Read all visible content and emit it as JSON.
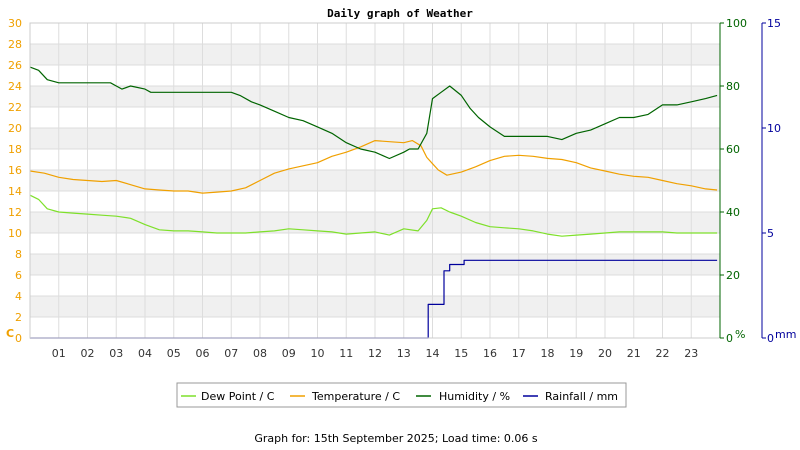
{
  "chart_data": {
    "type": "line",
    "title": "Daily graph of Weather",
    "footer": "Graph for: 15th September 2025; Load time: 0.06 s",
    "x_ticks": [
      "01",
      "02",
      "03",
      "04",
      "05",
      "06",
      "07",
      "08",
      "09",
      "10",
      "11",
      "12",
      "13",
      "14",
      "15",
      "16",
      "17",
      "18",
      "19",
      "20",
      "21",
      "22",
      "23"
    ],
    "xlim": [
      0,
      24
    ],
    "axes": {
      "left": {
        "unit": "C",
        "min": 0,
        "max": 30,
        "ticks": [
          "0",
          "2",
          "4",
          "6",
          "8",
          "10",
          "12",
          "14",
          "16",
          "18",
          "20",
          "22",
          "24",
          "26",
          "28",
          "30"
        ],
        "color": "#f0a000"
      },
      "humidity": {
        "unit": "%",
        "min": 0,
        "max": 100,
        "ticks": [
          "0",
          "20",
          "40",
          "60",
          "80",
          "100"
        ],
        "color": "#006400"
      },
      "rain": {
        "unit": "mm",
        "min": 0,
        "max": 15,
        "ticks": [
          "0",
          "5",
          "10",
          "15"
        ],
        "color": "#00009c"
      }
    },
    "series": [
      {
        "name": "Dew Point / C",
        "axis": "left",
        "color": "#7ee02a",
        "points": [
          [
            0,
            13.6
          ],
          [
            0.3,
            13.2
          ],
          [
            0.6,
            12.3
          ],
          [
            1,
            12.0
          ],
          [
            1.5,
            11.9
          ],
          [
            2,
            11.8
          ],
          [
            2.5,
            11.7
          ],
          [
            3,
            11.6
          ],
          [
            3.5,
            11.4
          ],
          [
            4,
            10.8
          ],
          [
            4.5,
            10.3
          ],
          [
            5,
            10.2
          ],
          [
            5.5,
            10.2
          ],
          [
            6,
            10.1
          ],
          [
            6.5,
            10.0
          ],
          [
            7,
            10.0
          ],
          [
            7.5,
            10.0
          ],
          [
            8,
            10.1
          ],
          [
            8.5,
            10.2
          ],
          [
            9,
            10.4
          ],
          [
            9.5,
            10.3
          ],
          [
            10,
            10.2
          ],
          [
            10.5,
            10.1
          ],
          [
            11,
            9.9
          ],
          [
            11.5,
            10.0
          ],
          [
            12,
            10.1
          ],
          [
            12.5,
            9.8
          ],
          [
            13,
            10.4
          ],
          [
            13.5,
            10.2
          ],
          [
            13.8,
            11.2
          ],
          [
            14,
            12.3
          ],
          [
            14.3,
            12.4
          ],
          [
            14.6,
            12.0
          ],
          [
            15,
            11.6
          ],
          [
            15.5,
            11.0
          ],
          [
            16,
            10.6
          ],
          [
            16.5,
            10.5
          ],
          [
            17,
            10.4
          ],
          [
            17.5,
            10.2
          ],
          [
            18,
            9.9
          ],
          [
            18.5,
            9.7
          ],
          [
            19,
            9.8
          ],
          [
            19.5,
            9.9
          ],
          [
            20,
            10.0
          ],
          [
            20.5,
            10.1
          ],
          [
            21,
            10.1
          ],
          [
            21.5,
            10.1
          ],
          [
            22,
            10.1
          ],
          [
            22.5,
            10.0
          ],
          [
            23,
            10.0
          ],
          [
            23.5,
            10.0
          ],
          [
            23.9,
            10.0
          ]
        ]
      },
      {
        "name": "Temperature / C",
        "axis": "left",
        "color": "#f0a000",
        "points": [
          [
            0,
            15.9
          ],
          [
            0.5,
            15.7
          ],
          [
            1,
            15.3
          ],
          [
            1.5,
            15.1
          ],
          [
            2,
            15.0
          ],
          [
            2.5,
            14.9
          ],
          [
            3,
            15.0
          ],
          [
            3.5,
            14.6
          ],
          [
            4,
            14.2
          ],
          [
            4.5,
            14.1
          ],
          [
            5,
            14.0
          ],
          [
            5.5,
            14.0
          ],
          [
            6,
            13.8
          ],
          [
            6.5,
            13.9
          ],
          [
            7,
            14.0
          ],
          [
            7.5,
            14.3
          ],
          [
            8,
            15.0
          ],
          [
            8.5,
            15.7
          ],
          [
            9,
            16.1
          ],
          [
            9.5,
            16.4
          ],
          [
            10,
            16.7
          ],
          [
            10.5,
            17.3
          ],
          [
            11,
            17.7
          ],
          [
            11.5,
            18.2
          ],
          [
            12,
            18.8
          ],
          [
            12.5,
            18.7
          ],
          [
            13,
            18.6
          ],
          [
            13.3,
            18.8
          ],
          [
            13.6,
            18.3
          ],
          [
            13.8,
            17.2
          ],
          [
            14,
            16.6
          ],
          [
            14.2,
            16.0
          ],
          [
            14.5,
            15.5
          ],
          [
            15,
            15.8
          ],
          [
            15.5,
            16.3
          ],
          [
            16,
            16.9
          ],
          [
            16.5,
            17.3
          ],
          [
            17,
            17.4
          ],
          [
            17.5,
            17.3
          ],
          [
            18,
            17.1
          ],
          [
            18.5,
            17.0
          ],
          [
            19,
            16.7
          ],
          [
            19.5,
            16.2
          ],
          [
            20,
            15.9
          ],
          [
            20.5,
            15.6
          ],
          [
            21,
            15.4
          ],
          [
            21.5,
            15.3
          ],
          [
            22,
            15.0
          ],
          [
            22.5,
            14.7
          ],
          [
            23,
            14.5
          ],
          [
            23.5,
            14.2
          ],
          [
            23.9,
            14.1
          ]
        ]
      },
      {
        "name": "Humidity / %",
        "axis": "humidity",
        "color": "#006400",
        "points": [
          [
            0,
            86
          ],
          [
            0.3,
            85
          ],
          [
            0.6,
            82
          ],
          [
            1,
            81
          ],
          [
            1.5,
            81
          ],
          [
            2,
            81
          ],
          [
            2.5,
            81
          ],
          [
            2.8,
            81
          ],
          [
            3,
            80
          ],
          [
            3.2,
            79
          ],
          [
            3.5,
            80
          ],
          [
            4,
            79
          ],
          [
            4.2,
            78
          ],
          [
            5,
            78
          ],
          [
            6,
            78
          ],
          [
            6.5,
            78
          ],
          [
            7,
            78
          ],
          [
            7.3,
            77
          ],
          [
            7.7,
            75
          ],
          [
            8,
            74
          ],
          [
            8.5,
            72
          ],
          [
            9,
            70
          ],
          [
            9.5,
            69
          ],
          [
            10,
            67
          ],
          [
            10.5,
            65
          ],
          [
            11,
            62
          ],
          [
            11.5,
            60
          ],
          [
            12,
            59
          ],
          [
            12.5,
            57
          ],
          [
            13,
            59
          ],
          [
            13.2,
            60
          ],
          [
            13.5,
            60
          ],
          [
            13.8,
            65
          ],
          [
            14,
            76
          ],
          [
            14.3,
            78
          ],
          [
            14.6,
            80
          ],
          [
            15,
            77
          ],
          [
            15.3,
            73
          ],
          [
            15.6,
            70
          ],
          [
            16,
            67
          ],
          [
            16.5,
            64
          ],
          [
            17,
            64
          ],
          [
            17.5,
            64
          ],
          [
            18,
            64
          ],
          [
            18.5,
            63
          ],
          [
            19,
            65
          ],
          [
            19.5,
            66
          ],
          [
            20,
            68
          ],
          [
            20.5,
            70
          ],
          [
            21,
            70
          ],
          [
            21.5,
            71
          ],
          [
            22,
            74
          ],
          [
            22.5,
            74
          ],
          [
            23,
            75
          ],
          [
            23.5,
            76
          ],
          [
            23.9,
            77
          ]
        ]
      },
      {
        "name": "Rainfall / mm",
        "axis": "rain",
        "color": "#00009c",
        "step": true,
        "points": [
          [
            0,
            0
          ],
          [
            13.85,
            0
          ],
          [
            13.85,
            1.6
          ],
          [
            14.4,
            1.6
          ],
          [
            14.4,
            3.2
          ],
          [
            14.6,
            3.2
          ],
          [
            14.6,
            3.5
          ],
          [
            15.1,
            3.5
          ],
          [
            15.1,
            3.7
          ],
          [
            23.9,
            3.7
          ]
        ]
      }
    ],
    "legend": [
      "Dew Point / C",
      "Temperature / C",
      "Humidity / %",
      "Rainfall / mm"
    ],
    "legend_position": "bottom-center",
    "grid": true
  }
}
